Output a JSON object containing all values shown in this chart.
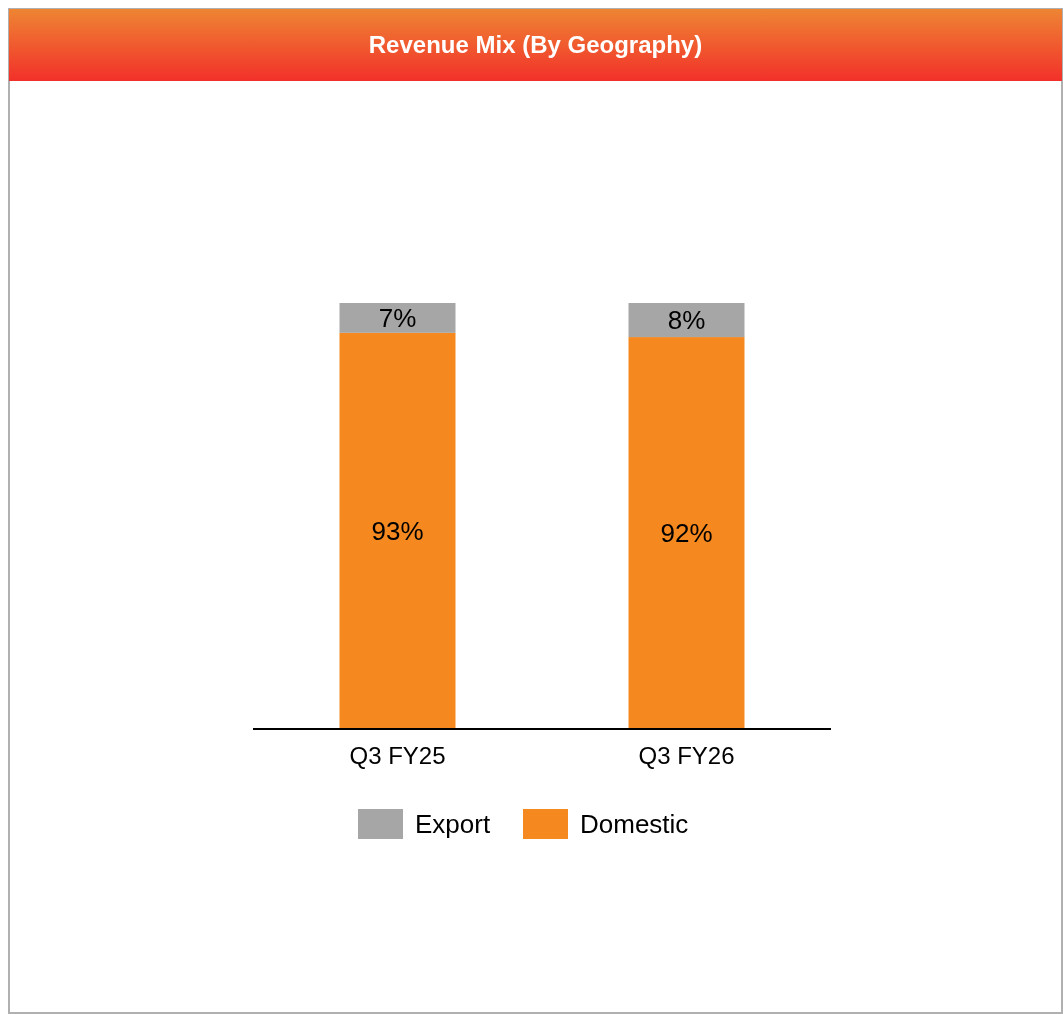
{
  "chart_data": {
    "type": "bar",
    "title": "Revenue Mix (By Geography)",
    "categories": [
      "Q3 FY25",
      "Q3 FY26"
    ],
    "stacked": true,
    "legend": "bottom",
    "series": [
      {
        "name": "Domestic",
        "color": "#f5891f",
        "values": [
          93,
          92
        ],
        "value_labels": [
          "93%",
          "92%"
        ]
      },
      {
        "name": "Export",
        "color": "#a6a6a6",
        "values": [
          7,
          8
        ],
        "value_labels": [
          "7%",
          "8%"
        ]
      }
    ]
  }
}
